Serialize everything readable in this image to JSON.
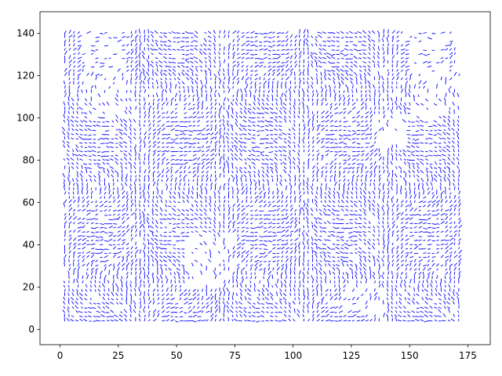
{
  "chart_data": {
    "type": "quiver",
    "title": "",
    "xlabel": "",
    "ylabel": "",
    "xlim": [
      -8.6,
      184.6
    ],
    "ylim": [
      -7.2,
      150.2
    ],
    "xticks": [
      0,
      25,
      50,
      75,
      100,
      125,
      150,
      175
    ],
    "xtick_labels": [
      "0",
      "25",
      "50",
      "75",
      "100",
      "125",
      "150",
      "175"
    ],
    "yticks": [
      0,
      20,
      40,
      60,
      80,
      100,
      120,
      140
    ],
    "ytick_labels": [
      "0",
      "20",
      "40",
      "60",
      "80",
      "100",
      "120",
      "140"
    ],
    "grid": false,
    "legend": "none",
    "vector_color": "#0000ff",
    "field_extent": {
      "x": [
        2,
        172
      ],
      "y": [
        4,
        140
      ]
    },
    "dominant_direction": "vertical",
    "sparse_regions": [
      {
        "x": [
          8,
          30
        ],
        "y": [
          100,
          140
        ]
      },
      {
        "x": [
          55,
          75
        ],
        "y": [
          20,
          45
        ]
      },
      {
        "x": [
          120,
          140
        ],
        "y": [
          8,
          20
        ]
      },
      {
        "x": [
          150,
          172
        ],
        "y": [
          100,
          140
        ]
      },
      {
        "x": [
          135,
          150
        ],
        "y": [
          85,
          100
        ]
      }
    ]
  }
}
